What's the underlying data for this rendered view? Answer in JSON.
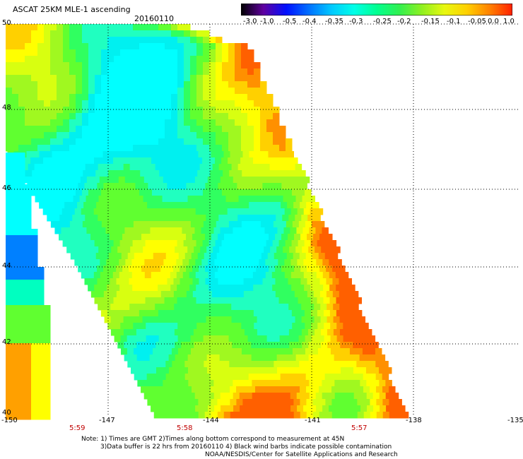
{
  "header": {
    "title": "ASCAT 25KM MLE-1 ascending",
    "date": "20160110"
  },
  "colorbar": {
    "tick_labels": [
      "-3.0",
      "-1.0",
      "-0.5",
      "-0.4",
      "-0.35",
      "-0.3",
      "-0.25",
      "-0.2",
      "-0.15",
      "-0.1",
      "-0.05",
      "0.0",
      "1.0"
    ],
    "colors": [
      "#000000",
      "#6000a0",
      "#0010ff",
      "#0070ff",
      "#00c8ff",
      "#00ffe8",
      "#00ff90",
      "#30f050",
      "#90f020",
      "#e8f810",
      "#ffd000",
      "#ff8000",
      "#ff2000"
    ]
  },
  "map": {
    "lat_labels": [
      "50",
      "48",
      "46",
      "44",
      "42",
      "40"
    ],
    "lon_labels": [
      "-150",
      "-147",
      "-144",
      "-141",
      "-138",
      "-135"
    ],
    "time_labels": [
      "5:59",
      "5:58",
      "5:57"
    ],
    "time_label_color": "#c00000",
    "grid_color": "#000000"
  },
  "notes": {
    "line1": "Note: 1) Times are GMT 2)Times along bottom correspond to measurement at 45N",
    "line2": "3)Data buffer is 22 hrs from 20160110 4) Black wind barbs indicate possible contamination",
    "line3": "NOAA/NESDIS/Center for Satellite Applications and Research"
  }
}
